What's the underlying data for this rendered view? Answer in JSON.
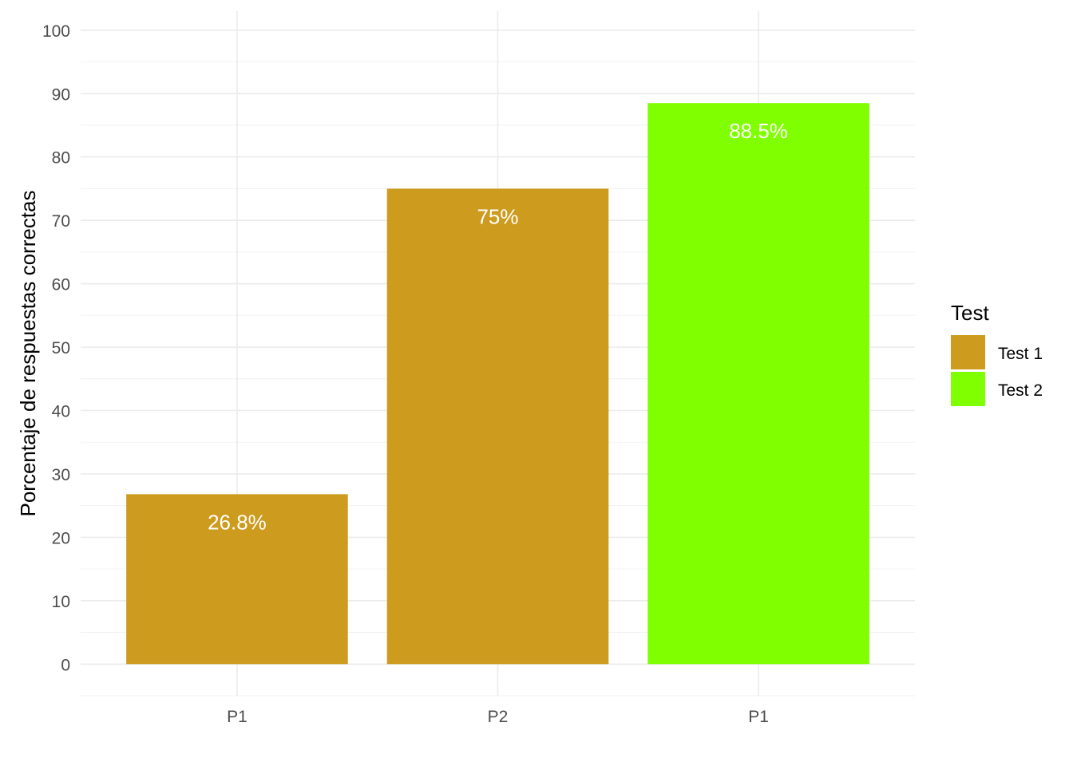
{
  "chart_data": {
    "type": "bar",
    "title": "",
    "xlabel": "",
    "ylabel": "Porcentaje de respuestas correctas",
    "ylim": [
      -5,
      103
    ],
    "yticks": [
      0,
      10,
      20,
      30,
      40,
      50,
      60,
      70,
      80,
      90,
      100
    ],
    "grid": true,
    "categories": [
      "P1",
      "P2",
      "P1"
    ],
    "bars": [
      {
        "category": "P1",
        "value": 26.8,
        "label": "26.8%",
        "series": "Test 1"
      },
      {
        "category": "P2",
        "value": 75,
        "label": "75%",
        "series": "Test 1"
      },
      {
        "category": "P1",
        "value": 88.5,
        "label": "88.5%",
        "series": "Test 2"
      }
    ],
    "legend": {
      "title": "Test",
      "position": "right",
      "entries": [
        {
          "name": "Test 1",
          "color": "#CD9B1D"
        },
        {
          "name": "Test 2",
          "color": "#7FFF00"
        }
      ]
    }
  }
}
